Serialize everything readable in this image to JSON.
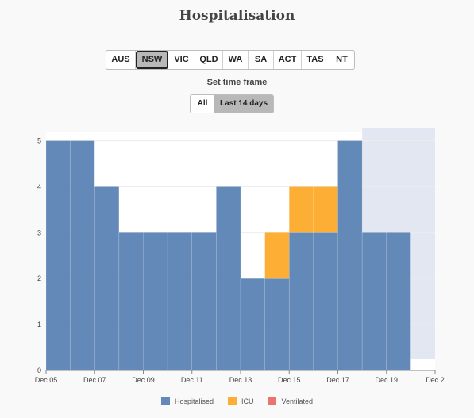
{
  "page": {
    "title": "Hospitalisation"
  },
  "regions": {
    "items": [
      "AUS",
      "NSW",
      "VIC",
      "QLD",
      "WA",
      "SA",
      "ACT",
      "TAS",
      "NT"
    ],
    "selected": "NSW"
  },
  "timeframe": {
    "label": "Set time frame",
    "options": [
      "All",
      "Last 14 days"
    ],
    "selected": "Last 14 days"
  },
  "colors": {
    "hospitalised": "#6389b8",
    "icu": "#fdae35",
    "ventilated": "#e8766f",
    "projection": "#e3e7f1"
  },
  "chart_data": {
    "type": "bar",
    "stacked": true,
    "categories": [
      "Dec 05",
      "Dec 06",
      "Dec 07",
      "Dec 08",
      "Dec 09",
      "Dec 10",
      "Dec 11",
      "Dec 12",
      "Dec 13",
      "Dec 14",
      "Dec 15",
      "Dec 16",
      "Dec 17",
      "Dec 18",
      "Dec 19",
      "Dec 20"
    ],
    "x_tick_labels": [
      "Dec 05",
      "Dec 07",
      "Dec 09",
      "Dec 11",
      "Dec 13",
      "Dec 15",
      "Dec 17",
      "Dec 19",
      "Dec 2"
    ],
    "series": [
      {
        "name": "Hospitalised",
        "values": [
          5,
          5,
          4,
          3,
          3,
          3,
          3,
          4,
          2,
          2,
          3,
          3,
          5,
          3,
          3,
          0
        ]
      },
      {
        "name": "ICU",
        "values": [
          0,
          0,
          0,
          0,
          0,
          0,
          0,
          0,
          0,
          1,
          1,
          1,
          0,
          0,
          0,
          0
        ]
      },
      {
        "name": "Ventilated",
        "values": [
          0,
          0,
          0,
          0,
          0,
          0,
          0,
          0,
          0,
          0,
          0,
          0,
          0,
          0,
          0,
          0
        ]
      }
    ],
    "y_ticks": [
      0,
      1,
      2,
      3,
      4,
      5
    ],
    "ylim": [
      0,
      5.2
    ],
    "grid": true,
    "legend": "bottom",
    "shaded_region_categories": [
      "Dec 18",
      "Dec 19",
      "Dec 20"
    ]
  },
  "legend": {
    "items": [
      {
        "label": "Hospitalised",
        "color": "#6389b8"
      },
      {
        "label": "ICU",
        "color": "#fdae35"
      },
      {
        "label": "Ventilated",
        "color": "#e8766f"
      }
    ]
  }
}
